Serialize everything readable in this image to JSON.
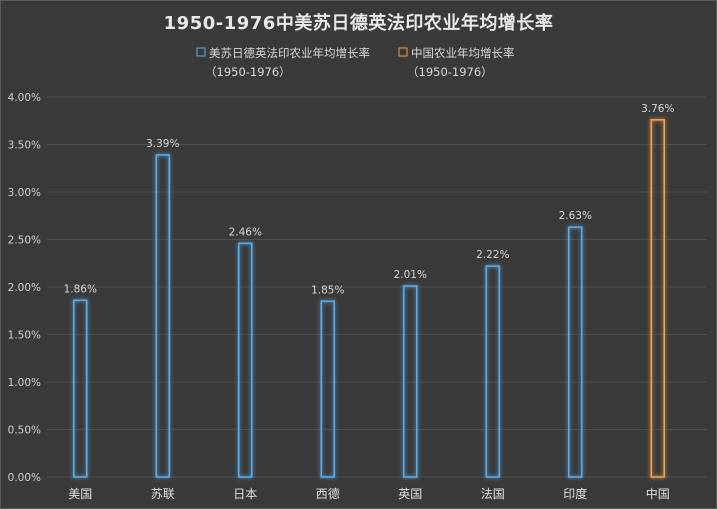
{
  "chart_data": {
    "type": "bar",
    "title": "1950-1976中美苏日德英法印农业年均增长率",
    "categories": [
      "美国",
      "苏联",
      "日本",
      "西德",
      "英国",
      "法国",
      "印度",
      "中国"
    ],
    "series": [
      {
        "name": "美苏日德英法印农业年均增长率",
        "name_sub": "（1950-1976）",
        "color": "#5aaae8",
        "values": [
          1.86,
          3.39,
          2.46,
          1.85,
          2.01,
          2.22,
          2.63,
          null
        ]
      },
      {
        "name": "中国农业年均增长率",
        "name_sub": "（1950-1976）",
        "color": "#f0a050",
        "values": [
          null,
          null,
          null,
          null,
          null,
          null,
          null,
          3.76
        ]
      }
    ],
    "data_labels": [
      "1.86%",
      "3.39%",
      "2.46%",
      "1.85%",
      "2.01%",
      "2.22%",
      "2.63%",
      "3.76%"
    ],
    "ylim": [
      0,
      4.0
    ],
    "yticks": [
      "0.00%",
      "0.50%",
      "1.00%",
      "1.50%",
      "2.00%",
      "2.50%",
      "3.00%",
      "3.50%",
      "4.00%"
    ],
    "grid": true,
    "legend_position": "top"
  }
}
